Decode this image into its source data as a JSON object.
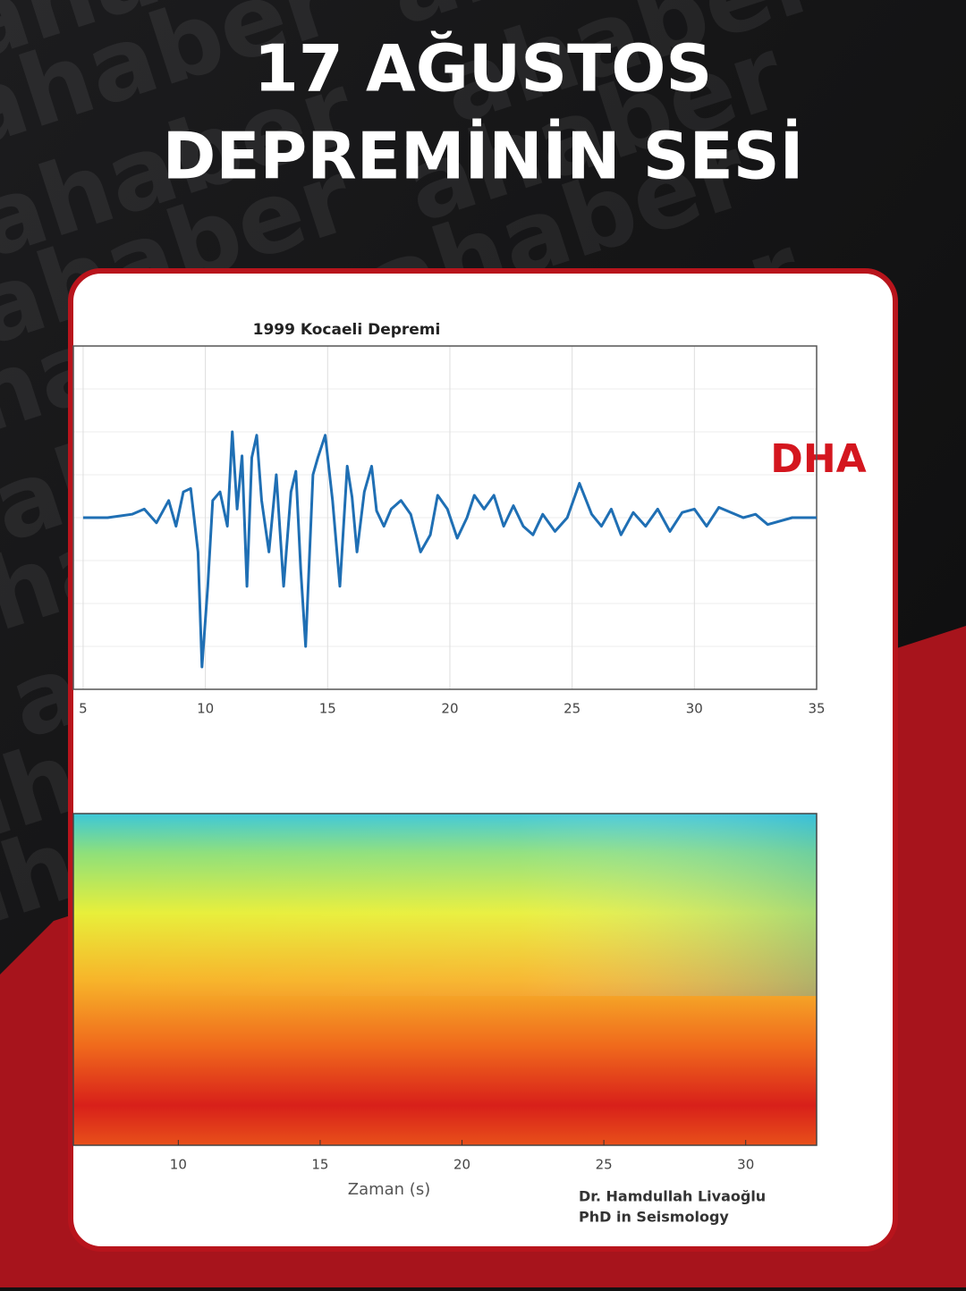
{
  "header": {
    "title_lines": [
      "17 AĞUSTOS",
      "DEPREMİNİN SESİ"
    ],
    "watermark": "ahaber",
    "logo": "DHA"
  },
  "chart_data": [
    {
      "type": "line",
      "title": "1999 Kocaeli Depremi",
      "color": "#1f6fb4",
      "x": [
        5,
        6,
        7,
        7.5,
        8,
        8.5,
        8.8,
        9.1,
        9.4,
        9.7,
        9.86,
        10.1,
        10.3,
        10.6,
        10.9,
        11.1,
        11.3,
        11.5,
        11.7,
        11.9,
        12.1,
        12.3,
        12.6,
        12.9,
        13.2,
        13.5,
        13.7,
        13.9,
        14.1,
        14.4,
        14.6,
        14.9,
        15.2,
        15.5,
        15.8,
        16.0,
        16.2,
        16.5,
        16.8,
        17.0,
        17.3,
        17.6,
        18.0,
        18.4,
        18.8,
        19.2,
        19.5,
        19.9,
        20.3,
        20.7,
        21.0,
        21.4,
        21.8,
        22.2,
        22.6,
        23.0,
        23.4,
        23.8,
        24.3,
        24.8,
        25.3,
        25.8,
        26.2,
        26.6,
        27.0,
        27.5,
        28.0,
        28.5,
        29.0,
        29.5,
        30.0,
        30.5,
        31.0,
        31.5,
        32.0,
        32.5,
        33,
        34,
        35
      ],
      "values": [
        0,
        0,
        0.02,
        0.05,
        -0.03,
        0.1,
        -0.05,
        0.15,
        0.17,
        -0.2,
        -0.87,
        -0.4,
        0.1,
        0.15,
        -0.05,
        0.5,
        0.05,
        0.36,
        -0.4,
        0.35,
        0.48,
        0.1,
        -0.2,
        0.25,
        -0.4,
        0.15,
        0.27,
        -0.3,
        -0.75,
        0.25,
        0.35,
        0.48,
        0.1,
        -0.4,
        0.3,
        0.12,
        -0.2,
        0.15,
        0.3,
        0.04,
        -0.05,
        0.05,
        0.1,
        0.02,
        -0.2,
        -0.1,
        0.13,
        0.05,
        -0.12,
        0.0,
        0.13,
        0.05,
        0.13,
        -0.05,
        0.07,
        -0.05,
        -0.1,
        0.02,
        -0.08,
        0.0,
        0.2,
        0.02,
        -0.05,
        0.05,
        -0.1,
        0.03,
        -0.05,
        0.05,
        -0.08,
        0.03,
        0.05,
        -0.05,
        0.06,
        0.03,
        0.0,
        0.02,
        -0.04,
        0.0,
        0
      ],
      "xlim": [
        4.6,
        35
      ],
      "xticks": [
        5,
        10,
        15,
        20,
        25,
        30,
        35
      ],
      "ylim": [
        -1,
        1
      ],
      "grid": true
    },
    {
      "type": "heatmap",
      "x_label": "Zaman (s)",
      "xlim": [
        6.3,
        32.5
      ],
      "xticks": [
        10,
        15,
        20,
        25,
        30
      ],
      "credit_lines": [
        "Dr. Hamdullah Livaoğlu",
        "PhD in Seismology"
      ]
    }
  ]
}
